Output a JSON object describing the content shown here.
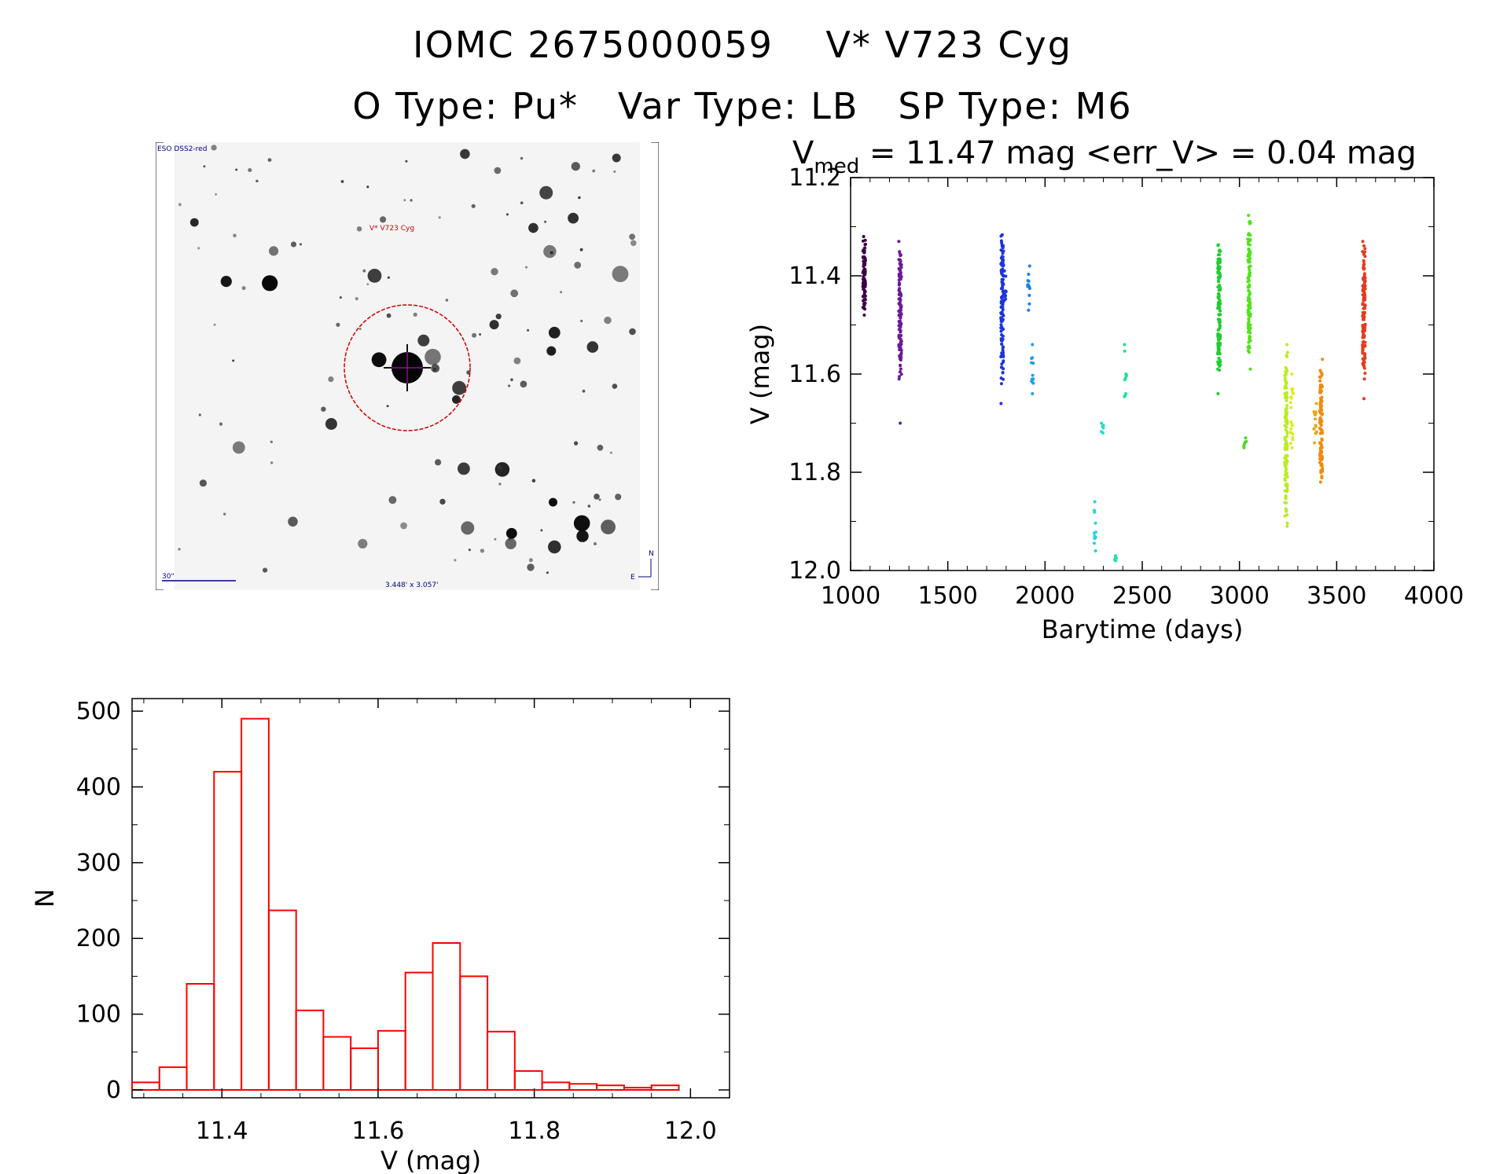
{
  "header": {
    "line1": "IOMC 2675000059    V* V723 Cyg",
    "line2": "O Type: Pu*   Var Type: LB   SP Type: M6"
  },
  "finder_chart": {
    "survey_label": "ESO DSS2-red",
    "target_label": "V* V723 Cyg",
    "scale_label": "30\"",
    "fov_label": "3.448' x 3.057'",
    "north_label": "N",
    "east_label": "E",
    "target_marker_color": "#cc0000"
  },
  "chart_data": [
    {
      "type": "scatter",
      "name": "light_curve",
      "title_prefix": "V",
      "title_subscript": "med",
      "title_suffix": " = 11.47 mag <err_V> = 0.04 mag",
      "xlabel": "Barytime (days)",
      "ylabel": "V (mag)",
      "xlim": [
        1000,
        4000
      ],
      "ylim": [
        11.2,
        12.0
      ],
      "y_inverted": true,
      "xticks": [
        1000,
        1500,
        2000,
        2500,
        3000,
        3500,
        4000
      ],
      "yticks": [
        "11.2",
        "11.4",
        "11.6",
        "11.8",
        "12.0"
      ],
      "color_scheme": "rainbow by time",
      "groups": [
        {
          "x": 1070,
          "y_min": 11.32,
          "y_max": 11.48,
          "y_center": 11.4,
          "n": 80,
          "color": "#3d0046"
        },
        {
          "x": 1255,
          "y_min": 11.33,
          "y_max": 11.61,
          "y_center": 11.48,
          "n": 120,
          "color": "#6a1a9a",
          "outliers": [
            11.7
          ]
        },
        {
          "x": 1780,
          "y_min": 11.34,
          "y_max": 11.66,
          "y_center": 11.46,
          "n": 120,
          "color": "#1e35d8"
        },
        {
          "x": 1795,
          "y_min": 11.39,
          "y_max": 11.45,
          "y_center": 11.42,
          "n": 10,
          "color": "#1e35d8"
        },
        {
          "x": 1915,
          "y_min": 11.38,
          "y_max": 11.47,
          "y_center": 11.43,
          "n": 12,
          "color": "#1f7fe8"
        },
        {
          "x": 1935,
          "y_min": 11.54,
          "y_max": 11.64,
          "y_center": 11.59,
          "n": 12,
          "color": "#1fa0e8"
        },
        {
          "x": 2255,
          "y_min": 11.86,
          "y_max": 11.96,
          "y_center": 11.91,
          "n": 12,
          "color": "#22d6e0"
        },
        {
          "x": 2295,
          "y_min": 11.7,
          "y_max": 11.72,
          "y_center": 11.71,
          "n": 6,
          "color": "#22e0c8"
        },
        {
          "x": 2365,
          "y_min": 11.97,
          "y_max": 11.98,
          "y_center": 11.975,
          "n": 5,
          "color": "#22e0b0"
        },
        {
          "x": 2415,
          "y_min": 11.54,
          "y_max": 11.64,
          "y_center": 11.6,
          "n": 10,
          "color": "#22e090"
        },
        {
          "x": 2895,
          "y_min": 11.35,
          "y_max": 11.64,
          "y_center": 11.47,
          "n": 110,
          "color": "#22cc33"
        },
        {
          "x": 3030,
          "y_min": 11.73,
          "y_max": 11.75,
          "y_center": 11.74,
          "n": 6,
          "color": "#44dd22"
        },
        {
          "x": 3050,
          "y_min": 11.29,
          "y_max": 11.59,
          "y_center": 11.42,
          "n": 110,
          "color": "#55e022"
        },
        {
          "x": 3240,
          "y_min": 11.54,
          "y_max": 11.91,
          "y_center": 11.73,
          "n": 120,
          "color": "#b9ee1e"
        },
        {
          "x": 3270,
          "y_min": 11.6,
          "y_max": 11.75,
          "y_center": 11.68,
          "n": 20,
          "color": "#d8ee1e"
        },
        {
          "x": 3390,
          "y_min": 11.66,
          "y_max": 11.74,
          "y_center": 11.7,
          "n": 15,
          "color": "#e8a81e"
        },
        {
          "x": 3420,
          "y_min": 11.57,
          "y_max": 11.82,
          "y_center": 11.7,
          "n": 100,
          "color": "#f08a10"
        },
        {
          "x": 3640,
          "y_min": 11.33,
          "y_max": 11.61,
          "y_center": 11.47,
          "n": 120,
          "color": "#e63a1e",
          "outliers": [
            11.65
          ]
        }
      ]
    },
    {
      "type": "bar",
      "name": "histogram",
      "xlabel": "V (mag)",
      "ylabel": "N",
      "xlim": [
        11.28,
        12.05
      ],
      "ylim": [
        0,
        500
      ],
      "xticks": [
        "11.4",
        "11.6",
        "11.8",
        "12.0"
      ],
      "yticks": [
        "0",
        "100",
        "200",
        "300",
        "400",
        "500"
      ],
      "bin_width": 0.035,
      "bin_edges_start": 11.285,
      "values": [
        10,
        30,
        140,
        420,
        490,
        237,
        105,
        70,
        55,
        78,
        155,
        194,
        150,
        77,
        25,
        10,
        8,
        6,
        3,
        6
      ],
      "color": "#ff0000"
    }
  ]
}
